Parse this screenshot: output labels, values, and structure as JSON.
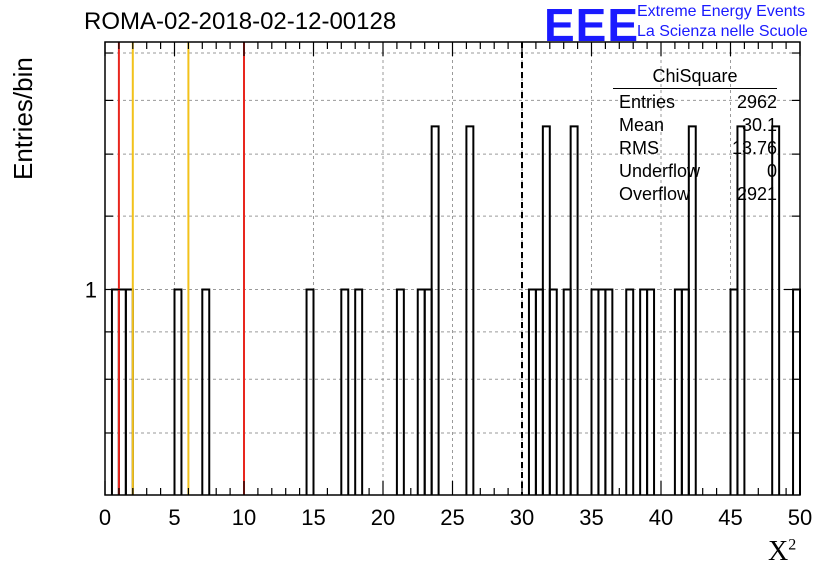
{
  "title": "ROMA-02-2018-02-12-00128",
  "logo": {
    "mark": "EEE",
    "line1": "Extreme Energy Events",
    "line2": "La Scienza nelle Scuole",
    "color": "#1a1aff"
  },
  "stats": {
    "title": "ChiSquare",
    "rows": [
      {
        "label": "Entries",
        "value": "2962"
      },
      {
        "label": "Mean",
        "value": "30.1"
      },
      {
        "label": "RMS",
        "value": "13.76"
      },
      {
        "label": "Underflow",
        "value": "0"
      },
      {
        "label": "Overflow",
        "value": "2921"
      }
    ]
  },
  "chart_data": {
    "type": "histogram",
    "xlabel": "X",
    "xlabel_sup": "2",
    "ylabel": "Entries/bin",
    "xlim": [
      0,
      50
    ],
    "ylim": [
      0.6,
      1.85
    ],
    "yscale": "log",
    "grid": true,
    "x_ticks": [
      0,
      5,
      10,
      15,
      20,
      25,
      30,
      35,
      40,
      45,
      50
    ],
    "y_tick_labels": [
      {
        "value": 1,
        "label": "1"
      }
    ],
    "bin_width": 0.5,
    "bins": [
      {
        "x": 0.5,
        "value": 1
      },
      {
        "x": 1.0,
        "value": 1
      },
      {
        "x": 1.5,
        "value": 1
      },
      {
        "x": 5.0,
        "value": 1
      },
      {
        "x": 7.0,
        "value": 1
      },
      {
        "x": 14.5,
        "value": 1
      },
      {
        "x": 17.0,
        "value": 1
      },
      {
        "x": 18.0,
        "value": 1
      },
      {
        "x": 21.0,
        "value": 1
      },
      {
        "x": 22.5,
        "value": 1
      },
      {
        "x": 23.0,
        "value": 1
      },
      {
        "x": 23.5,
        "value": 1.5
      },
      {
        "x": 26.0,
        "value": 1.5
      },
      {
        "x": 30.5,
        "value": 1
      },
      {
        "x": 31.0,
        "value": 1
      },
      {
        "x": 31.5,
        "value": 1.5
      },
      {
        "x": 32.0,
        "value": 1
      },
      {
        "x": 33.0,
        "value": 1
      },
      {
        "x": 33.5,
        "value": 1.5
      },
      {
        "x": 35.0,
        "value": 1
      },
      {
        "x": 35.5,
        "value": 1
      },
      {
        "x": 36.0,
        "value": 1
      },
      {
        "x": 37.5,
        "value": 1
      },
      {
        "x": 38.5,
        "value": 1
      },
      {
        "x": 39.0,
        "value": 1
      },
      {
        "x": 41.0,
        "value": 1
      },
      {
        "x": 41.5,
        "value": 1
      },
      {
        "x": 42.0,
        "value": 1.5
      },
      {
        "x": 45.0,
        "value": 1
      },
      {
        "x": 45.5,
        "value": 1.5
      },
      {
        "x": 48.0,
        "value": 1.5
      },
      {
        "x": 49.5,
        "value": 1
      }
    ],
    "vlines": [
      {
        "x": 1,
        "color": "#e8261e",
        "style": "solid"
      },
      {
        "x": 2,
        "color": "#f2c21b",
        "style": "solid"
      },
      {
        "x": 6,
        "color": "#f2c21b",
        "style": "solid"
      },
      {
        "x": 10,
        "color": "#e8261e",
        "style": "solid"
      },
      {
        "x": 30,
        "color": "#000000",
        "style": "dashed"
      }
    ]
  }
}
